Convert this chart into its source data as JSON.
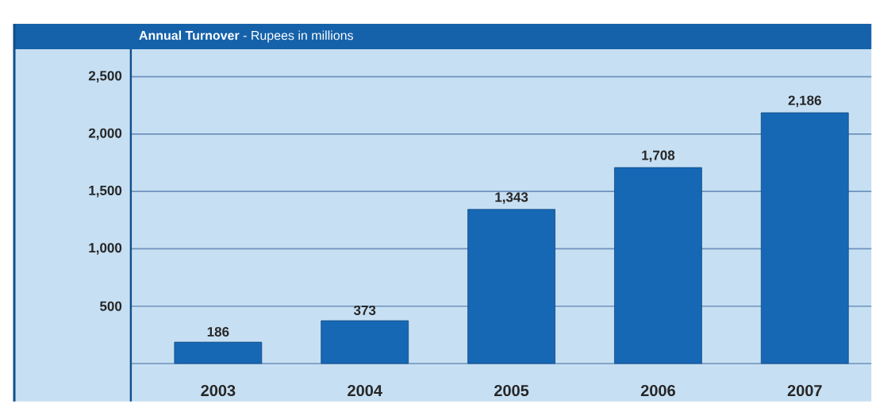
{
  "chart_data": {
    "type": "bar",
    "title": "**Annual Turnover** - Rupees in millions",
    "categories": [
      "2003",
      "2004",
      "2005",
      "2006",
      "2007"
    ],
    "values": [
      186,
      373,
      1343,
      1708,
      2186
    ],
    "value_labels": [
      "186",
      "373",
      "1,343",
      "1,708",
      "2,186"
    ],
    "color": "#1668b5",
    "ylim": [
      -330,
      2740
    ],
    "yticks": [
      {
        "value": 0,
        "label": null
      },
      {
        "value": 500,
        "label": "500"
      },
      {
        "value": 1000,
        "label": "1,000"
      },
      {
        "value": 1500,
        "label": "1,500"
      },
      {
        "value": 2000,
        "label": "2,000"
      },
      {
        "value": 2500,
        "label": "2,500"
      }
    ],
    "grid": "y"
  }
}
